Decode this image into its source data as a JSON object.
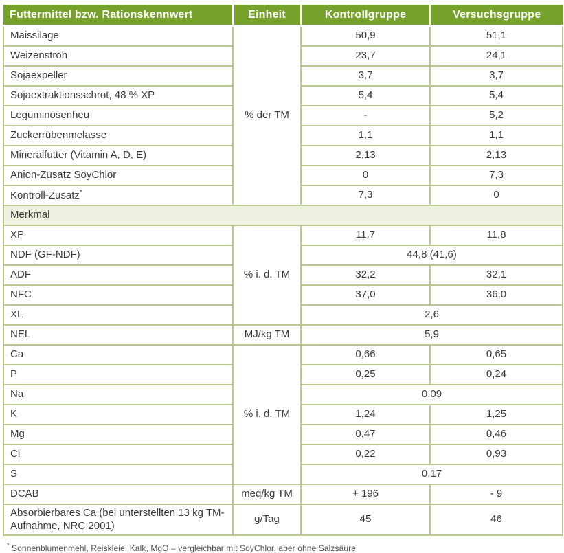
{
  "colors": {
    "header_green": "#76a22b",
    "border_green": "#bac98f",
    "section_bg": "#ecf2df",
    "body_text": "#3b3b3b",
    "header_text": "#ffffff"
  },
  "header": {
    "col1": "Futtermittel bzw. Rationskennwert",
    "col2": "Einheit",
    "col3": "Kontrollgruppe",
    "col4": "Versuchsgruppe"
  },
  "s1": {
    "unit": "% der TM",
    "rows": [
      {
        "l": "Maissilage",
        "k": "50,9",
        "v": "51,1"
      },
      {
        "l": "Weizenstroh",
        "k": "23,7",
        "v": "24,1"
      },
      {
        "l": "Sojaexpeller",
        "k": "3,7",
        "v": "3,7"
      },
      {
        "l": "Sojaextraktionsschrot, 48 % XP",
        "k": "5,4",
        "v": "5,4"
      },
      {
        "l": "Leguminosenheu",
        "k": "-",
        "v": "5,2"
      },
      {
        "l": "Zuckerrübenmelasse",
        "k": "1,1",
        "v": "1,1"
      },
      {
        "l": "Mineralfutter (Vitamin A, D, E)",
        "k": "2,13",
        "v": "2,13"
      },
      {
        "l": "Anion-Zusatz SoyChlor",
        "k": "0",
        "v": "7,3"
      },
      {
        "l": "Kontroll-Zusatz",
        "sup": "*",
        "k": "7,3",
        "v": "0"
      }
    ]
  },
  "section_header": "Merkmal",
  "s2": {
    "unit_group1": "% i. d. TM",
    "unit_group2": "% i. d. TM",
    "rows": [
      {
        "l": "XP",
        "k": "11,7",
        "v": "11,8"
      },
      {
        "l": "NDF (GF-NDF)",
        "span": "44,8 (41,6)"
      },
      {
        "l": "ADF",
        "k": "32,2",
        "v": "32,1"
      },
      {
        "l": "NFC",
        "k": "37,0",
        "v": "36,0"
      },
      {
        "l": "XL",
        "span": "2,6"
      },
      {
        "l": "NEL",
        "unit": "MJ/kg TM",
        "span": "5,9"
      },
      {
        "l": "Ca",
        "k": "0,66",
        "v": "0,65"
      },
      {
        "l": "P",
        "k": "0,25",
        "v": "0,24"
      },
      {
        "l": "Na",
        "span": "0,09"
      },
      {
        "l": "K",
        "k": "1,24",
        "v": "1,25"
      },
      {
        "l": "Mg",
        "k": "0,47",
        "v": "0,46"
      },
      {
        "l": "Cl",
        "k": "0,22",
        "v": "0,93"
      },
      {
        "l": "S",
        "span": "0,17"
      },
      {
        "l": "DCAB",
        "unit": "meq/kg TM",
        "k": "+ 196",
        "v": "- 9"
      },
      {
        "l": "Absorbierbares Ca (bei unterstellten 13 kg TM-Aufnahme, NRC 2001)",
        "unit": "g/Tag",
        "k": "45",
        "v": "46"
      }
    ]
  },
  "footnote": {
    "sup": "*",
    "text": " Sonnenblumenmehl, Reiskleie, Kalk, MgO – vergleichbar mit SoyChlor, aber ohne Salzsäure"
  }
}
